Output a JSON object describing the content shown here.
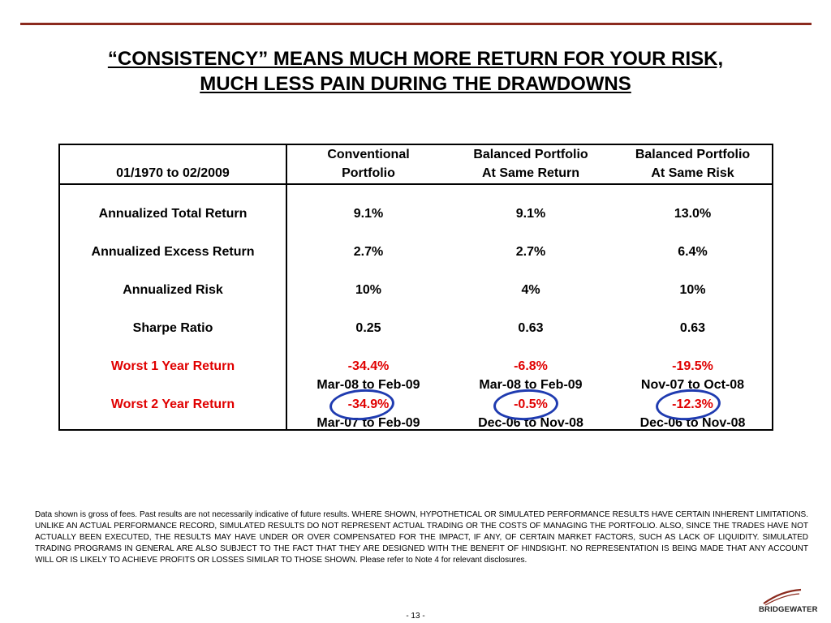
{
  "title": {
    "line1": "“CONSISTENCY” MEANS MUCH MORE RETURN FOR YOUR RISK,",
    "line2": "MUCH LESS PAIN DURING THE DRAWDOWNS"
  },
  "table": {
    "period": "01/1970 to 02/2009",
    "headers": [
      {
        "line1": "Conventional",
        "line2": "Portfolio"
      },
      {
        "line1": "Balanced Portfolio",
        "line2": "At Same Return"
      },
      {
        "line1": "Balanced Portfolio",
        "line2": "At Same Risk"
      }
    ],
    "rows": [
      {
        "label": "Annualized Total Return",
        "values": [
          "9.1%",
          "9.1%",
          "13.0%"
        ]
      },
      {
        "label": "Annualized Excess Return",
        "values": [
          "2.7%",
          "2.7%",
          "6.4%"
        ]
      },
      {
        "label": "Annualized Risk",
        "values": [
          "10%",
          "4%",
          "10%"
        ]
      },
      {
        "label": "Sharpe Ratio",
        "values": [
          "0.25",
          "0.63",
          "0.63"
        ]
      },
      {
        "label": "Worst 1 Year Return",
        "values": [
          "-34.4%",
          "-6.8%",
          "-19.5%"
        ],
        "periods": [
          "Mar-08 to Feb-09",
          "Mar-08 to Feb-09",
          "Nov-07 to Oct-08"
        ]
      },
      {
        "label": "Worst 2 Year Return",
        "values": [
          "-34.9%",
          "-0.5%",
          "-12.3%"
        ],
        "periods": [
          "Mar-07 to Feb-09",
          "Dec-06 to Nov-08",
          "Dec-06 to Nov-08"
        ]
      }
    ]
  },
  "colors": {
    "rule": "#8b2a1e",
    "highlight_text": "#e00000",
    "circle": "#1f3bb0"
  },
  "disclaimer": "Data shown is gross of fees.  Past results are not necessarily indicative of future results. WHERE SHOWN, HYPOTHETICAL OR SIMULATED PERFORMANCE RESULTS HAVE CERTAIN INHERENT LIMITATIONS.  UNLIKE AN ACTUAL PERFORMANCE RECORD, SIMULATED RESULTS DO NOT REPRESENT ACTUAL TRADING OR THE COSTS OF MANAGING THE PORTFOLIO.  ALSO, SINCE THE TRADES HAVE NOT ACTUALLY BEEN EXECUTED, THE RESULTS MAY HAVE UNDER OR OVER COMPENSATED FOR THE IMPACT, IF ANY, OF CERTAIN MARKET FACTORS, SUCH AS LACK OF LIQUIDITY.  SIMULATED TRADING PROGRAMS IN GENERAL ARE ALSO SUBJECT TO THE FACT THAT THEY ARE DESIGNED WITH THE BENEFIT OF HINDSIGHT.  NO REPRESENTATION IS BEING MADE THAT ANY ACCOUNT WILL OR IS LIKELY TO ACHIEVE PROFITS OR LOSSES SIMILAR TO THOSE SHOWN. Please refer to Note 4 for relevant disclosures.",
  "page_number": "- 13 -",
  "logo": {
    "text": "BRIDGEWATER",
    "icon": "bridgewater-swoosh-icon"
  }
}
